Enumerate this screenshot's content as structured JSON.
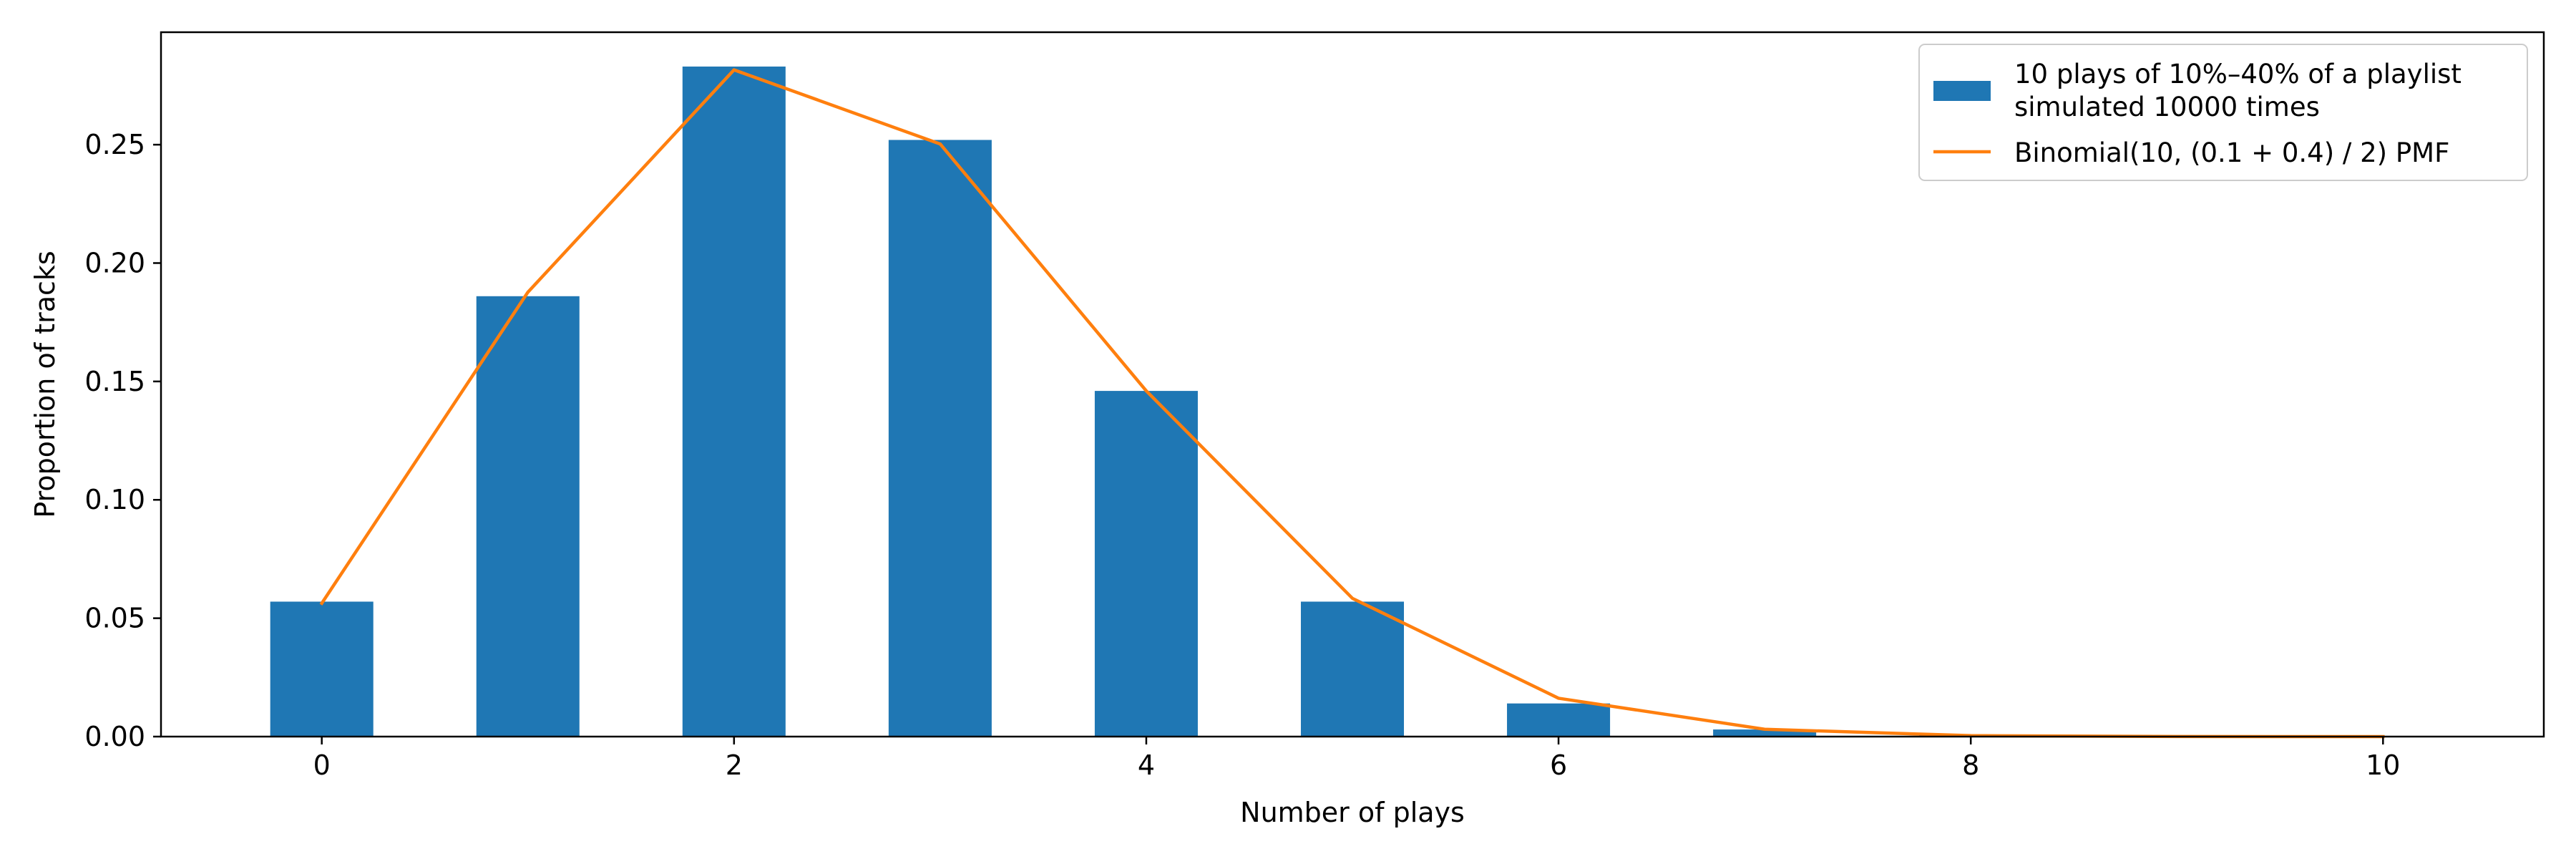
{
  "chart_data": {
    "type": "bar",
    "title": "",
    "xlabel": "Number of plays",
    "ylabel": "Proportion of tracks",
    "xlim": [
      -0.78,
      10.78
    ],
    "ylim": [
      0,
      0.2975
    ],
    "x_ticks": [
      0,
      2,
      4,
      6,
      8,
      10
    ],
    "x_tick_labels": [
      "0",
      "2",
      "4",
      "6",
      "8",
      "10"
    ],
    "y_ticks": [
      0,
      0.05,
      0.1,
      0.15,
      0.2,
      0.25
    ],
    "y_tick_labels": [
      "0.00",
      "0.05",
      "0.10",
      "0.15",
      "0.20",
      "0.25"
    ],
    "grid": false,
    "legend_position": "top-right",
    "x": [
      0,
      1,
      2,
      3,
      4,
      5,
      6,
      7,
      8,
      9,
      10
    ],
    "series": [
      {
        "type": "bar",
        "legend_lines": [
          "10 plays of 10%–40% of a playlist",
          "simulated 10000 times"
        ],
        "color": "#1f77b4",
        "values": [
          0.057,
          0.186,
          0.283,
          0.252,
          0.146,
          0.057,
          0.014,
          0.003,
          0.0005,
          0.0001,
          0.0
        ]
      },
      {
        "type": "line",
        "name": "Binomial(10, (0.1 + 0.4) / 2) PMF",
        "color": "#ff7f0e",
        "values": [
          0.0563,
          0.1877,
          0.2816,
          0.2503,
          0.146,
          0.0584,
          0.0162,
          0.0031,
          0.0004,
          3e-05,
          1e-06
        ]
      }
    ]
  }
}
